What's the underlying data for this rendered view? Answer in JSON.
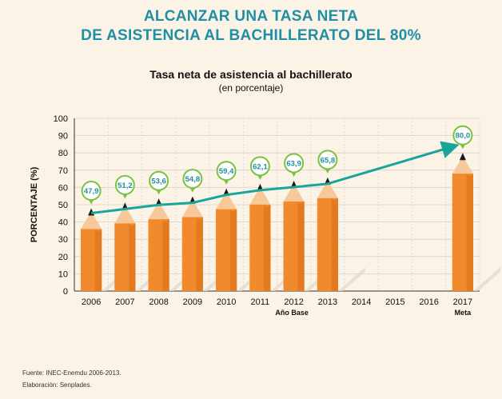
{
  "header": {
    "title_line1": "ALCANZAR UNA TASA NETA",
    "title_line2": "DE ASISTENCIA AL BACHILLERATO DEL 80%"
  },
  "chart_data": {
    "type": "bar",
    "title": "Tasa neta de asistencia al bachillerato",
    "subtitle": "(en porcentaje)",
    "ylabel": "PORCENTAJE (%)",
    "xlabel": "",
    "ylim": [
      0,
      100
    ],
    "yticks": [
      0,
      10,
      20,
      30,
      40,
      50,
      60,
      70,
      80,
      90,
      100
    ],
    "categories": [
      "2006",
      "2007",
      "2008",
      "2009",
      "2010",
      "2011",
      "2012",
      "2013",
      "2014",
      "2015",
      "2016",
      "2017"
    ],
    "values": [
      47.9,
      51.2,
      53.6,
      54.8,
      59.4,
      62.1,
      63.9,
      65.8,
      null,
      null,
      null,
      80.0
    ],
    "value_labels": [
      "47,9",
      "51,2",
      "53,6",
      "54,8",
      "59,4",
      "62,1",
      "63,9",
      "65,8",
      "",
      "",
      "",
      "80,0"
    ],
    "category_notes": [
      {
        "category": "2012",
        "text": "Año Base"
      },
      {
        "category": "2017",
        "text": "Meta"
      }
    ],
    "grid": true,
    "trend_arrow": true,
    "colors": {
      "bar_body": "#f08a2c",
      "bar_body_dark": "#d96d16",
      "pencil_wood": "#f6c89a",
      "pencil_tip": "#1a1a1a",
      "label_pin": "#7cc242",
      "label_text": "#1f8fa6",
      "arrow": "#1aa59a",
      "title": "#1f8fa6"
    }
  },
  "footer": {
    "source": "Fuente: INEC-Enemdu 2006-2013.",
    "elaboration": "Elaboración: Senplades."
  }
}
